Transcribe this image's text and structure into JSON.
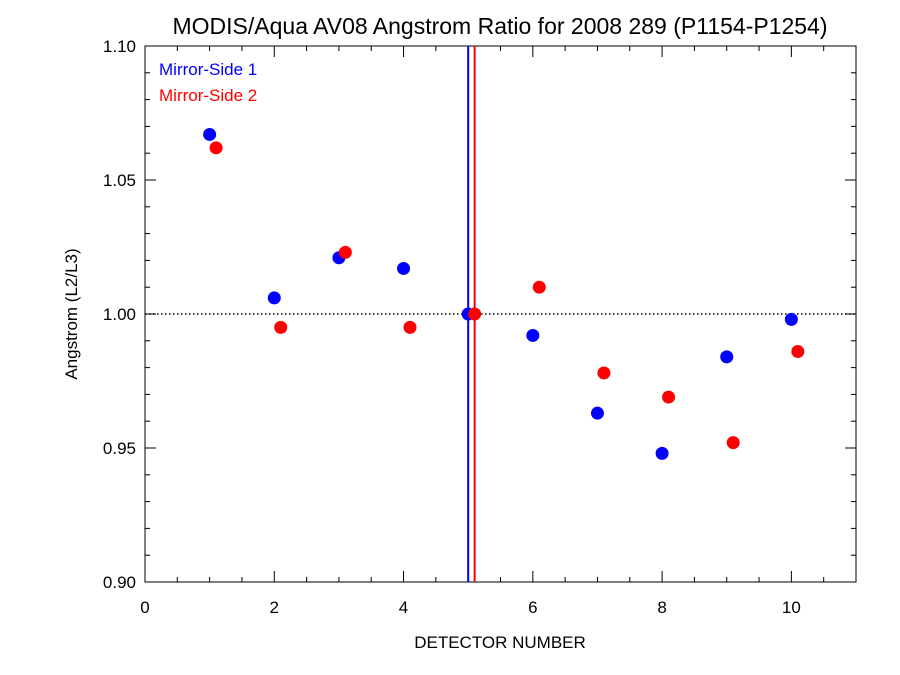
{
  "chart_data": {
    "type": "scatter",
    "title": "MODIS/Aqua AV08 Angstrom Ratio for 2008 289 (P1154-P1254)",
    "xlabel": "DETECTOR NUMBER",
    "ylabel": "Angstrom (L2/L3)",
    "xlim": [
      0,
      11
    ],
    "ylim": [
      0.9,
      1.1
    ],
    "x_ticks": [
      0,
      2,
      4,
      6,
      8,
      10
    ],
    "x_tick_labels": [
      "0",
      "2",
      "4",
      "6",
      "8",
      "10"
    ],
    "y_ticks": [
      0.9,
      0.95,
      1.0,
      1.05,
      1.1
    ],
    "y_tick_labels": [
      "0.90",
      "0.95",
      "1.00",
      "1.05",
      "1.10"
    ],
    "reference_line_y": 1.0,
    "series": [
      {
        "name": "Mirror-Side 1",
        "color": "#0000ff",
        "x": [
          1,
          2,
          3,
          4,
          5,
          6,
          7,
          8,
          9,
          10
        ],
        "y": [
          1.067,
          1.006,
          1.021,
          1.017,
          1.0,
          0.992,
          0.963,
          0.948,
          0.984,
          0.998
        ],
        "vertical_line_x": 5.0
      },
      {
        "name": "Mirror-Side 2",
        "color": "#ff0000",
        "x": [
          1.1,
          2.1,
          3.1,
          4.1,
          5.1,
          6.1,
          7.1,
          8.1,
          9.1,
          10.1
        ],
        "y": [
          1.062,
          0.995,
          1.023,
          0.995,
          1.0,
          1.01,
          0.978,
          0.969,
          0.952,
          0.986
        ],
        "vertical_line_x": 5.1
      }
    ],
    "legend_position": "top-left",
    "grid": false
  }
}
